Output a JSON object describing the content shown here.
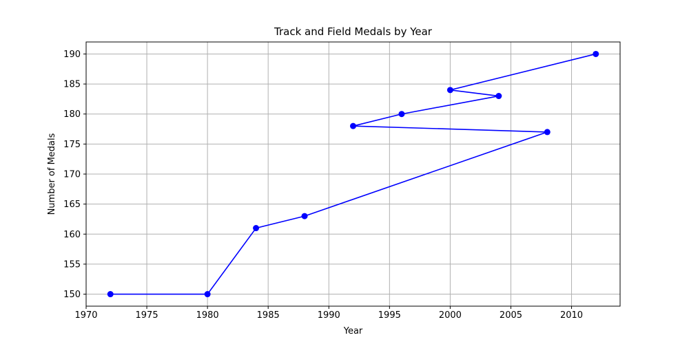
{
  "chart_data": {
    "type": "line",
    "title": "Track and Field Medals by Year",
    "xlabel": "Year",
    "ylabel": "Number of Medals",
    "x": [
      1972,
      1980,
      1984,
      1988,
      2008,
      1992,
      1996,
      2004,
      2000,
      2012
    ],
    "series": [
      {
        "values": [
          150,
          150,
          161,
          163,
          177,
          178,
          180,
          183,
          184,
          190
        ]
      }
    ],
    "xlim": [
      1970,
      2014
    ],
    "ylim": [
      148,
      192
    ],
    "xticks": [
      1970,
      1975,
      1980,
      1985,
      1990,
      1995,
      2000,
      2005,
      2010
    ],
    "yticks": [
      150,
      155,
      160,
      165,
      170,
      175,
      180,
      185,
      190
    ],
    "grid": true,
    "colors": {
      "line": "#0000ff",
      "marker": "#0000ff",
      "grid": "#b0b0b0"
    }
  }
}
